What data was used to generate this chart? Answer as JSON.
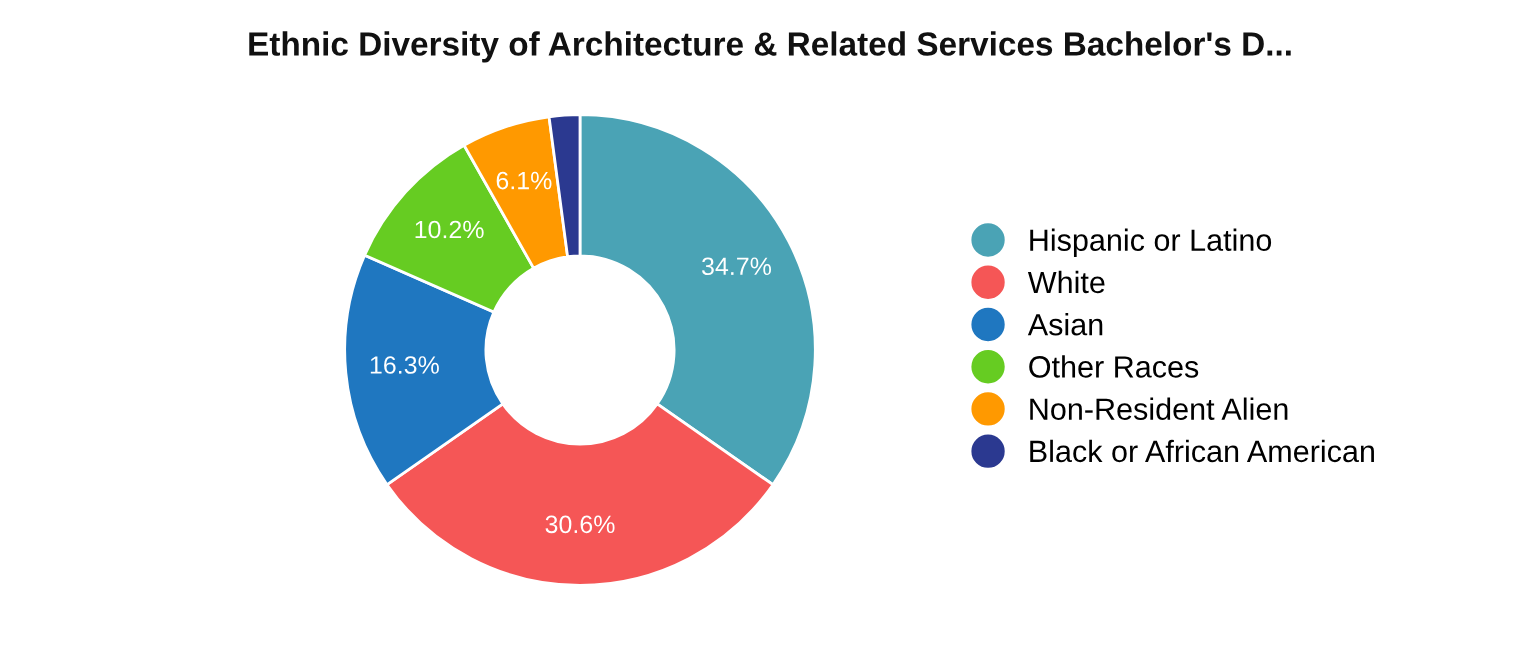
{
  "chart_data": {
    "type": "donut",
    "title": "Ethnic Diversity of Architecture & Related Services Bachelor's D...",
    "categories": [
      "Hispanic or Latino",
      "White",
      "Asian",
      "Other Races",
      "Non-Resident Alien",
      "Black or African American"
    ],
    "values": [
      34.7,
      30.6,
      16.3,
      10.2,
      6.1,
      2.1
    ],
    "value_labels": [
      "34.7%",
      "30.6%",
      "16.3%",
      "10.2%",
      "6.1%",
      null
    ],
    "colors": [
      "#4aa3b5",
      "#f55656",
      "#1f77c0",
      "#66cc22",
      "#ff9900",
      "#2b3990"
    ],
    "legend": "right"
  }
}
